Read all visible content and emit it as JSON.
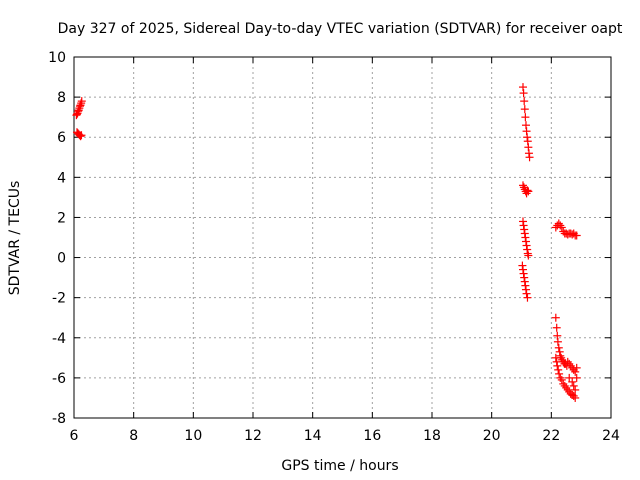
{
  "chart_data": {
    "type": "scatter",
    "title": "Day 327 of 2025, Sidereal Day-to-day VTEC variation (SDTVAR) for receiver oapt",
    "xlabel": "GPS time / hours",
    "ylabel": "SDTVAR / TECUs",
    "xlim": [
      6,
      24
    ],
    "ylim": [
      -8,
      10
    ],
    "xticks": [
      6,
      8,
      10,
      12,
      14,
      16,
      18,
      20,
      22,
      24
    ],
    "yticks": [
      -8,
      -6,
      -4,
      -2,
      0,
      2,
      4,
      6,
      8,
      10
    ],
    "grid": true,
    "marker": "+",
    "marker_color": "#ff0000",
    "series": [
      {
        "name": "SDTVAR",
        "points": [
          [
            6.08,
            7.1
          ],
          [
            6.1,
            7.15
          ],
          [
            6.12,
            7.2
          ],
          [
            6.14,
            7.3
          ],
          [
            6.16,
            7.35
          ],
          [
            6.18,
            7.45
          ],
          [
            6.2,
            7.55
          ],
          [
            6.22,
            7.6
          ],
          [
            6.24,
            7.7
          ],
          [
            6.26,
            7.8
          ],
          [
            6.1,
            6.25
          ],
          [
            6.13,
            6.2
          ],
          [
            6.16,
            6.15
          ],
          [
            6.19,
            6.1
          ],
          [
            6.22,
            6.05
          ],
          [
            6.25,
            6.1
          ],
          [
            21.05,
            8.5
          ],
          [
            21.07,
            8.2
          ],
          [
            21.09,
            7.8
          ],
          [
            21.11,
            7.4
          ],
          [
            21.13,
            7.0
          ],
          [
            21.15,
            6.6
          ],
          [
            21.17,
            6.3
          ],
          [
            21.19,
            6.0
          ],
          [
            21.21,
            5.8
          ],
          [
            21.23,
            5.5
          ],
          [
            21.25,
            5.2
          ],
          [
            21.27,
            5.0
          ],
          [
            21.05,
            3.6
          ],
          [
            21.08,
            3.5
          ],
          [
            21.11,
            3.4
          ],
          [
            21.14,
            3.3
          ],
          [
            21.17,
            3.2
          ],
          [
            21.2,
            3.35
          ],
          [
            21.23,
            3.3
          ],
          [
            21.05,
            1.8
          ],
          [
            21.07,
            1.6
          ],
          [
            21.09,
            1.4
          ],
          [
            21.11,
            1.2
          ],
          [
            21.13,
            1.0
          ],
          [
            21.15,
            0.8
          ],
          [
            21.17,
            0.6
          ],
          [
            21.19,
            0.4
          ],
          [
            21.21,
            0.2
          ],
          [
            21.23,
            0.1
          ],
          [
            21.03,
            -0.4
          ],
          [
            21.05,
            -0.6
          ],
          [
            21.07,
            -0.8
          ],
          [
            21.09,
            -1.0
          ],
          [
            21.11,
            -1.2
          ],
          [
            21.13,
            -1.4
          ],
          [
            21.15,
            -1.6
          ],
          [
            21.17,
            -1.8
          ],
          [
            21.2,
            -2.0
          ],
          [
            22.15,
            1.5
          ],
          [
            22.2,
            1.6
          ],
          [
            22.25,
            1.7
          ],
          [
            22.3,
            1.6
          ],
          [
            22.35,
            1.5
          ],
          [
            22.4,
            1.3
          ],
          [
            22.45,
            1.2
          ],
          [
            22.5,
            1.2
          ],
          [
            22.55,
            1.15
          ],
          [
            22.6,
            1.2
          ],
          [
            22.65,
            1.2
          ],
          [
            22.7,
            1.15
          ],
          [
            22.75,
            1.2
          ],
          [
            22.8,
            1.1
          ],
          [
            22.85,
            1.1
          ],
          [
            22.15,
            -3.0
          ],
          [
            22.18,
            -3.5
          ],
          [
            22.2,
            -3.9
          ],
          [
            22.22,
            -4.2
          ],
          [
            22.25,
            -4.5
          ],
          [
            22.28,
            -4.7
          ],
          [
            22.3,
            -4.9
          ],
          [
            22.33,
            -5.0
          ],
          [
            22.36,
            -5.1
          ],
          [
            22.4,
            -5.2
          ],
          [
            22.44,
            -5.3
          ],
          [
            22.48,
            -5.3
          ],
          [
            22.52,
            -5.4
          ],
          [
            22.15,
            -5.0
          ],
          [
            22.18,
            -5.2
          ],
          [
            22.2,
            -5.4
          ],
          [
            22.23,
            -5.6
          ],
          [
            22.26,
            -5.8
          ],
          [
            22.3,
            -6.0
          ],
          [
            22.35,
            -6.1
          ],
          [
            22.4,
            -6.3
          ],
          [
            22.45,
            -6.4
          ],
          [
            22.5,
            -6.5
          ],
          [
            22.55,
            -6.6
          ],
          [
            22.6,
            -6.7
          ],
          [
            22.65,
            -6.8
          ],
          [
            22.7,
            -6.85
          ],
          [
            22.75,
            -6.9
          ],
          [
            22.8,
            -7.0
          ],
          [
            22.55,
            -5.2
          ],
          [
            22.6,
            -5.3
          ],
          [
            22.65,
            -5.4
          ],
          [
            22.7,
            -5.5
          ],
          [
            22.75,
            -5.6
          ],
          [
            22.8,
            -5.7
          ],
          [
            22.85,
            -5.5
          ],
          [
            22.85,
            -6.0
          ],
          [
            22.7,
            -6.2
          ],
          [
            22.75,
            -6.4
          ],
          [
            22.8,
            -6.6
          ],
          [
            22.6,
            -6.0
          ]
        ]
      }
    ]
  }
}
